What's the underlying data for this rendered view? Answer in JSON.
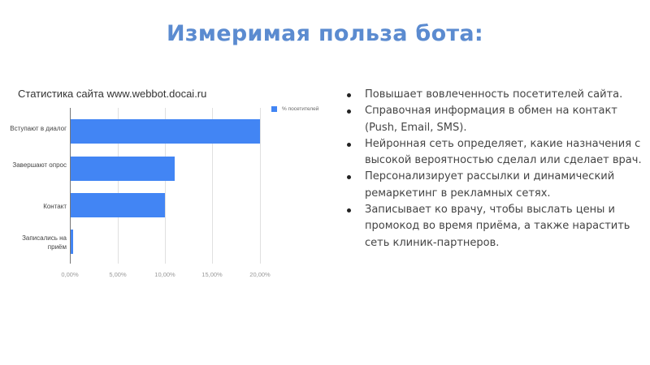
{
  "slide": {
    "title": "Измеримая польза бота:"
  },
  "chart_data": {
    "type": "bar",
    "orientation": "horizontal",
    "title": "Статистика сайта  www.webbot.docai.ru",
    "categories": [
      "Вступают в диалог",
      "Завершают опрос",
      "Контакт",
      "Записались на приём"
    ],
    "series": [
      {
        "name": "% посетителей",
        "values": [
          20.0,
          11.0,
          10.0,
          0.3
        ],
        "color": "#4285f4"
      }
    ],
    "xlabel": "",
    "ylabel": "",
    "xlim": [
      0,
      20
    ],
    "x_ticks": [
      "0,00%",
      "5,00%",
      "10,00%",
      "15,00%",
      "20,00%"
    ],
    "grid": true,
    "legend_position": "right"
  },
  "bullets": [
    "Повышает вовлеченность посетителей сайта.",
    "Справочная информация в обмен на контакт (Push, Email, SMS).",
    "Нейронная сеть определяет, какие назначения с высокой вероятностью сделал или сделает врач.",
    "Персонализирует рассылки и динамический ремаркетинг в рекламных сетях.",
    "Записывает ко врачу, чтобы выслать цены и промокод во время приёма, а также нарастить сеть клиник-партнеров."
  ]
}
